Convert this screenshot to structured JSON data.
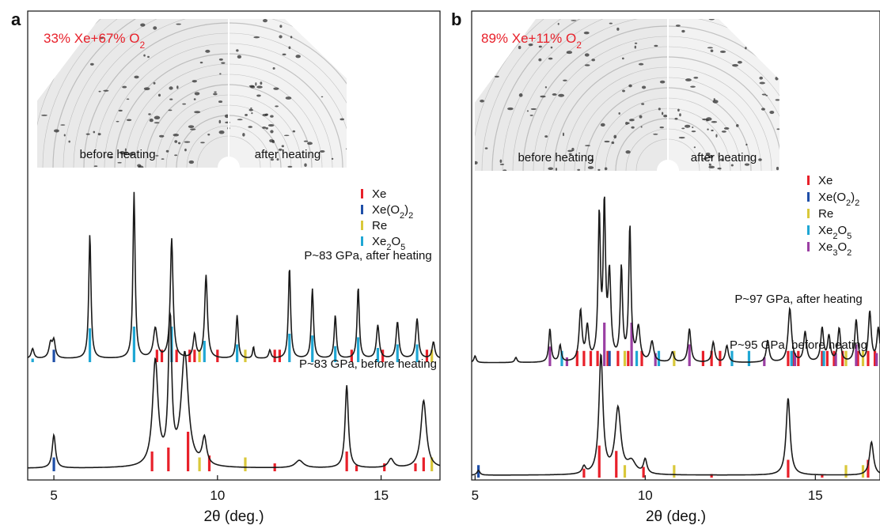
{
  "colors": {
    "Xe": "#e8202a",
    "Xe(O2)2": "#1f4fa8",
    "Re": "#d9c83a",
    "Xe2O5": "#1fa7d4",
    "Xe3O2": "#9b3fa3",
    "annotation": "#e8202a",
    "trace": "#1a1a1a"
  },
  "chart_data": [
    {
      "type": "line",
      "panel_letter": "a",
      "xlabel": "2θ (deg.)",
      "xlim": [
        4.2,
        16.8
      ],
      "xticks": [
        5,
        10,
        15
      ],
      "inset": {
        "composition": "33% Xe+67% O2",
        "composition_parts": {
          "main": "33% Xe+67% O",
          "sub": "2"
        },
        "left_label": "before heating",
        "right_label": "after heating"
      },
      "legend": [
        {
          "key": "Xe",
          "label": "Xe",
          "sub": ""
        },
        {
          "key": "Xe(O2)2",
          "label": "Xe(O",
          "sub": "2",
          "tail": ")",
          "sub2": "2"
        },
        {
          "key": "Re",
          "label": "Re",
          "sub": ""
        },
        {
          "key": "Xe2O5",
          "label": "Xe",
          "sub": "2",
          "tail": "O",
          "sub2": "5"
        }
      ],
      "series": [
        {
          "name": "P~83 GPa, after heating",
          "peaks": [
            [
              4.35,
              0.06,
              0.05
            ],
            [
              4.9,
              0.09,
              0.06
            ],
            [
              5.0,
              0.1,
              0.05
            ],
            [
              6.1,
              0.75,
              0.04
            ],
            [
              7.45,
              1.0,
              0.04
            ],
            [
              8.1,
              0.18,
              0.07
            ],
            [
              8.6,
              0.72,
              0.05
            ],
            [
              9.3,
              0.14,
              0.05
            ],
            [
              9.65,
              0.5,
              0.05
            ],
            [
              10.6,
              0.26,
              0.04
            ],
            [
              11.1,
              0.07,
              0.03
            ],
            [
              11.6,
              0.05,
              0.04
            ],
            [
              12.2,
              0.55,
              0.04
            ],
            [
              12.9,
              0.42,
              0.04
            ],
            [
              13.6,
              0.26,
              0.04
            ],
            [
              14.3,
              0.43,
              0.04
            ],
            [
              14.9,
              0.2,
              0.05
            ],
            [
              15.5,
              0.22,
              0.05
            ],
            [
              16.1,
              0.24,
              0.05
            ],
            [
              16.6,
              0.1,
              0.05
            ]
          ],
          "ticks": {
            "Xe": [
              8.15,
              8.3,
              8.6,
              8.75,
              9.15,
              9.3,
              10.0,
              11.75,
              11.9,
              14.1,
              15.05,
              16.4
            ],
            "Xe(O2)2": [
              5.0
            ],
            "Re": [
              9.45,
              10.85,
              16.55
            ],
            "Xe2O5": [
              4.35,
              6.1,
              7.45,
              8.6,
              9.6,
              10.6,
              12.2,
              12.9,
              13.6,
              14.3,
              14.9,
              15.5,
              16.1
            ]
          },
          "tick_heights": {
            "Xe2O5": [
              0.1,
              0.95,
              1.0,
              1.0,
              0.6,
              0.5,
              0.8,
              0.75,
              0.45,
              0.7,
              0.4,
              0.5,
              0.5
            ]
          }
        },
        {
          "name": "P~83 GPa, before heating",
          "peaks": [
            [
              5.0,
              0.22,
              0.06
            ],
            [
              8.1,
              0.7,
              0.1
            ],
            [
              8.55,
              1.0,
              0.06
            ],
            [
              9.0,
              0.75,
              0.13
            ],
            [
              9.6,
              0.18,
              0.08
            ],
            [
              12.5,
              0.05,
              0.15
            ],
            [
              13.95,
              0.55,
              0.06
            ],
            [
              15.3,
              0.06,
              0.1
            ],
            [
              16.3,
              0.45,
              0.1
            ]
          ],
          "ticks": {
            "Xe": [
              8.0,
              8.5,
              9.1,
              9.75,
              11.75,
              13.95,
              14.25,
              15.1,
              16.05,
              16.3
            ],
            "Xe(O2)2": [
              5.0
            ],
            "Re": [
              9.45,
              10.85,
              16.55
            ],
            "Xe2O5": []
          },
          "tick_heights": {
            "Xe": [
              0.5,
              0.6,
              1.0,
              0.4,
              0.2,
              0.5,
              0.15,
              0.2,
              0.2,
              0.35
            ]
          }
        }
      ]
    },
    {
      "type": "line",
      "panel_letter": "b",
      "xlabel": "2θ (deg.)",
      "xlim": [
        4.9,
        16.9
      ],
      "xticks": [
        5,
        10,
        15
      ],
      "inset": {
        "composition": "89% Xe+11% O2",
        "composition_parts": {
          "main": "89% Xe+11% O",
          "sub": "2"
        },
        "left_label": "before heating",
        "right_label": "after heating"
      },
      "legend": [
        {
          "key": "Xe",
          "label": "Xe",
          "sub": ""
        },
        {
          "key": "Xe(O2)2",
          "label": "Xe(O",
          "sub": "2",
          "tail": ")",
          "sub2": "2"
        },
        {
          "key": "Re",
          "label": "Re",
          "sub": ""
        },
        {
          "key": "Xe2O5",
          "label": "Xe",
          "sub": "2",
          "tail": "O",
          "sub2": "5"
        },
        {
          "key": "Xe3O2",
          "label": "Xe",
          "sub": "3",
          "tail": "O",
          "sub2": "2"
        }
      ],
      "series": [
        {
          "name": "P~97 GPa, after heating",
          "peaks": [
            [
              5.0,
              0.04,
              0.04
            ],
            [
              6.2,
              0.03,
              0.04
            ],
            [
              7.2,
              0.2,
              0.04
            ],
            [
              7.5,
              0.1,
              0.04
            ],
            [
              8.1,
              0.3,
              0.05
            ],
            [
              8.3,
              0.2,
              0.05
            ],
            [
              8.65,
              0.85,
              0.04
            ],
            [
              8.8,
              0.9,
              0.04
            ],
            [
              8.95,
              0.5,
              0.05
            ],
            [
              9.3,
              0.55,
              0.04
            ],
            [
              9.55,
              0.8,
              0.04
            ],
            [
              9.8,
              0.2,
              0.06
            ],
            [
              10.2,
              0.12,
              0.06
            ],
            [
              10.8,
              0.06,
              0.05
            ],
            [
              11.3,
              0.2,
              0.05
            ],
            [
              12.0,
              0.12,
              0.05
            ],
            [
              12.4,
              0.1,
              0.05
            ],
            [
              13.6,
              0.13,
              0.05
            ],
            [
              14.25,
              0.32,
              0.06
            ],
            [
              14.7,
              0.18,
              0.05
            ],
            [
              15.2,
              0.2,
              0.05
            ],
            [
              15.4,
              0.15,
              0.05
            ],
            [
              15.7,
              0.2,
              0.05
            ],
            [
              16.2,
              0.25,
              0.05
            ],
            [
              16.6,
              0.3,
              0.05
            ],
            [
              16.85,
              0.2,
              0.05
            ]
          ],
          "ticks": {
            "Xe": [
              8.0,
              8.2,
              8.4,
              8.6,
              8.9,
              9.2,
              9.5,
              9.9,
              11.7,
              11.95,
              12.2,
              14.2,
              14.35,
              14.5,
              15.2,
              15.35,
              15.55,
              15.8,
              16.25,
              16.55,
              16.75
            ],
            "Xe(O2)2": [
              8.95
            ],
            "Re": [
              9.4,
              10.85,
              15.9,
              16.4
            ],
            "Xe2O5": [
              7.55,
              9.75,
              10.4,
              12.55,
              13.05,
              14.3,
              15.25
            ],
            "Xe3O2": [
              7.2,
              7.7,
              8.8,
              9.6,
              10.3,
              11.3,
              13.5,
              14.4,
              15.6,
              16.2,
              16.8
            ]
          },
          "tick_heights": {
            "Xe3O2": [
              0.45,
              0.2,
              1.0,
              1.0,
              0.3,
              0.5,
              0.2,
              0.3,
              0.3,
              0.5,
              0.3
            ]
          }
        },
        {
          "name": "P~95 GPa, before heating",
          "peaks": [
            [
              5.1,
              0.04,
              0.05
            ],
            [
              8.2,
              0.06,
              0.06
            ],
            [
              8.7,
              1.0,
              0.07
            ],
            [
              9.2,
              0.55,
              0.1
            ],
            [
              9.6,
              0.1,
              0.15
            ],
            [
              10.0,
              0.12,
              0.06
            ],
            [
              14.2,
              0.65,
              0.07
            ],
            [
              16.65,
              0.28,
              0.07
            ]
          ],
          "ticks": {
            "Xe": [
              8.2,
              8.65,
              9.15,
              9.95,
              11.95,
              14.2,
              15.2,
              16.55
            ],
            "Xe(O2)2": [
              5.1
            ],
            "Re": [
              9.4,
              10.85,
              15.9,
              16.4
            ],
            "Xe2O5": [],
            "Xe3O2": []
          },
          "tick_heights": {
            "Xe": [
              0.25,
              0.9,
              0.75,
              0.3,
              0.1,
              0.5,
              0.1,
              0.5
            ]
          }
        }
      ]
    }
  ]
}
